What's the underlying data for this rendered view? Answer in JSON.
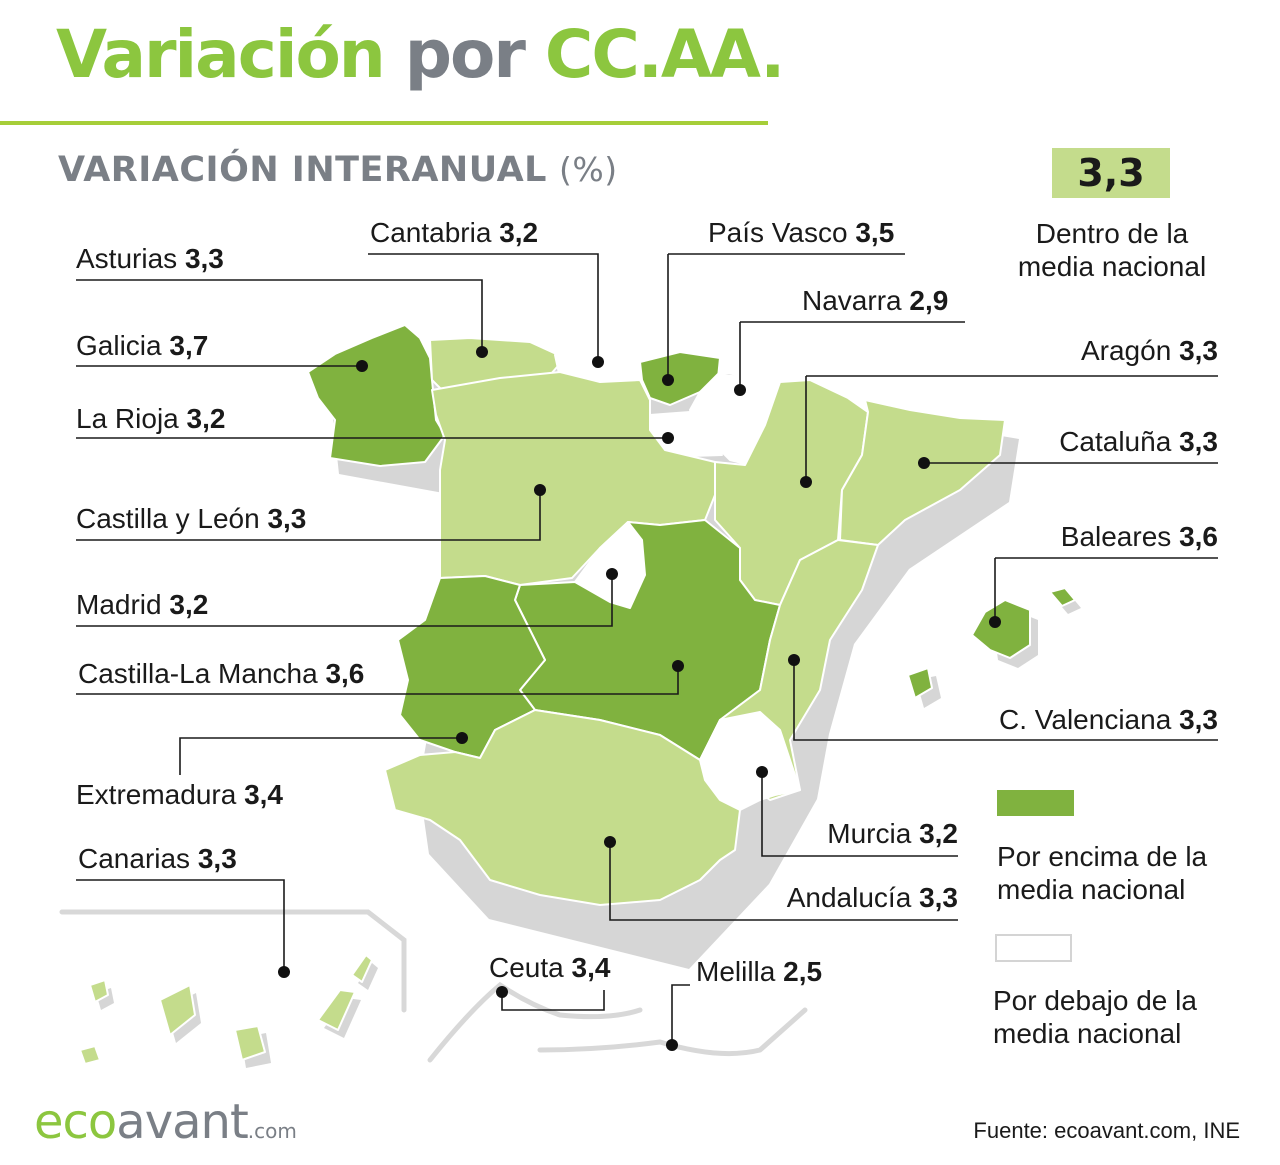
{
  "header": {
    "title_part1": "Variación",
    "title_part2": "por",
    "title_part3": "CC.AA.",
    "subtitle": "VARIACIÓN INTERANUAL",
    "subtitle_unit": "(%)"
  },
  "national_average": "3,3",
  "legend": {
    "average_label": "Dentro de la media nacional",
    "above_label": "Por encima de la media nacional",
    "below_label": "Por debajo de la media nacional"
  },
  "colors": {
    "title_green": "#8cc63f",
    "title_gray": "#7a7f86",
    "above_average": "#80b23f",
    "average": "#c4dc8c",
    "below_average": "#ffffff",
    "shadow": "#d4d4d4"
  },
  "regions": [
    {
      "name": "Asturias",
      "value": "3,3",
      "category": "average"
    },
    {
      "name": "Cantabria",
      "value": "3,2",
      "category": "below"
    },
    {
      "name": "País Vasco",
      "value": "3,5",
      "category": "above"
    },
    {
      "name": "Navarra",
      "value": "2,9",
      "category": "below"
    },
    {
      "name": "Galicia",
      "value": "3,7",
      "category": "above"
    },
    {
      "name": "Aragón",
      "value": "3,3",
      "category": "average"
    },
    {
      "name": "La Rioja",
      "value": "3,2",
      "category": "below"
    },
    {
      "name": "Cataluña",
      "value": "3,3",
      "category": "average"
    },
    {
      "name": "Castilla y León",
      "value": "3,3",
      "category": "average"
    },
    {
      "name": "Baleares",
      "value": "3,6",
      "category": "above"
    },
    {
      "name": "Madrid",
      "value": "3,2",
      "category": "below"
    },
    {
      "name": "Castilla-La Mancha",
      "value": "3,6",
      "category": "above"
    },
    {
      "name": "C. Valenciana",
      "value": "3,3",
      "category": "average"
    },
    {
      "name": "Extremadura",
      "value": "3,4",
      "category": "above"
    },
    {
      "name": "Murcia",
      "value": "3,2",
      "category": "below"
    },
    {
      "name": "Canarias",
      "value": "3,3",
      "category": "average"
    },
    {
      "name": "Andalucía",
      "value": "3,3",
      "category": "average"
    },
    {
      "name": "Ceuta",
      "value": "3,4",
      "category": "above"
    },
    {
      "name": "Melilla",
      "value": "2,5",
      "category": "below"
    }
  ],
  "footer": {
    "logo_part1": "eco",
    "logo_part2": "avant",
    "logo_suffix": ".com",
    "source": "Fuente: ecoavant.com, INE"
  }
}
